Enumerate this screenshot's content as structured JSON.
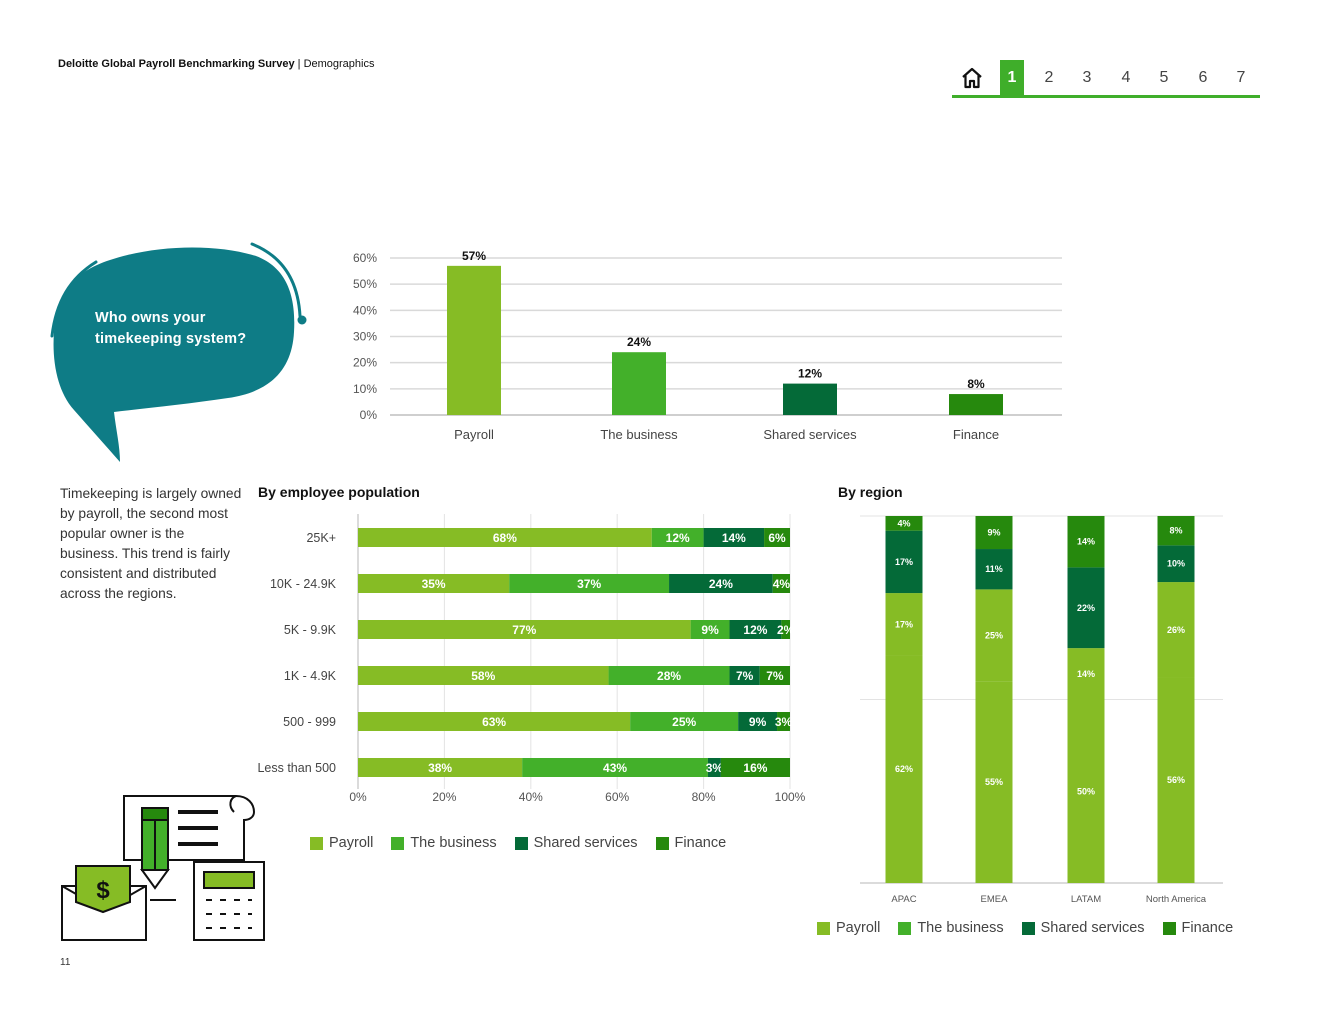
{
  "header": {
    "brand": "Deloitte Global Payroll Benchmarking Survey",
    "separator": " | ",
    "section": "Demographics"
  },
  "nav": {
    "pages": [
      "1",
      "2",
      "3",
      "4",
      "5",
      "6",
      "7"
    ],
    "active": "1",
    "home_icon": "home-icon"
  },
  "question": "Who owns your timekeeping system?",
  "description": "Timekeeping is largely owned by payroll, the second most popular owner is the business. This trend is fairly consistent and distributed across the regions.",
  "page_number": "11",
  "colors": {
    "payroll": "#86bc25",
    "business": "#43b02a",
    "shared": "#046a38",
    "finance": "#26890d",
    "bubble": "#0e7c86",
    "nav": "#3fae2a"
  },
  "legend_labels": [
    "Payroll",
    "The business",
    "Shared services",
    "Finance"
  ],
  "chart_data": [
    {
      "type": "bar",
      "title": "",
      "categories": [
        "Payroll",
        "The business",
        "Shared services",
        "Finance"
      ],
      "values": [
        57,
        24,
        12,
        8
      ],
      "value_labels": [
        "57%",
        "24%",
        "12%",
        "8%"
      ],
      "y_ticks": [
        "0%",
        "10%",
        "20%",
        "30%",
        "40%",
        "50%",
        "60%"
      ],
      "ylim": [
        0,
        60
      ],
      "grid": true
    },
    {
      "type": "bar",
      "orientation": "horizontal-stacked",
      "title": "By employee population",
      "categories": [
        "25K+",
        "10K - 24.9K",
        "5K - 9.9K",
        "1K - 4.9K",
        "500 - 999",
        "Less than 500"
      ],
      "series": [
        {
          "name": "Payroll",
          "values": [
            68,
            35,
            77,
            58,
            63,
            38
          ]
        },
        {
          "name": "The business",
          "values": [
            12,
            37,
            9,
            28,
            25,
            43
          ]
        },
        {
          "name": "Shared services",
          "values": [
            14,
            24,
            12,
            7,
            9,
            3
          ]
        },
        {
          "name": "Finance",
          "values": [
            6,
            4,
            2,
            7,
            3,
            16
          ]
        }
      ],
      "x_ticks": [
        "0%",
        "20%",
        "40%",
        "60%",
        "80%",
        "100%"
      ],
      "xlim": [
        0,
        100
      ],
      "legend": "bottom",
      "grid": true
    },
    {
      "type": "bar",
      "orientation": "vertical-stacked",
      "title": "By region",
      "categories": [
        "APAC",
        "EMEA",
        "LATAM",
        "North America"
      ],
      "series": [
        {
          "name": "Payroll",
          "values": [
            62,
            55,
            50,
            56
          ]
        },
        {
          "name": "The business",
          "values": [
            17,
            25,
            14,
            26
          ]
        },
        {
          "name": "Shared services",
          "values": [
            17,
            11,
            22,
            10
          ]
        },
        {
          "name": "Finance",
          "values": [
            4,
            9,
            14,
            8
          ]
        }
      ],
      "ylim": [
        0,
        100
      ],
      "legend": "bottom",
      "grid": true
    }
  ]
}
